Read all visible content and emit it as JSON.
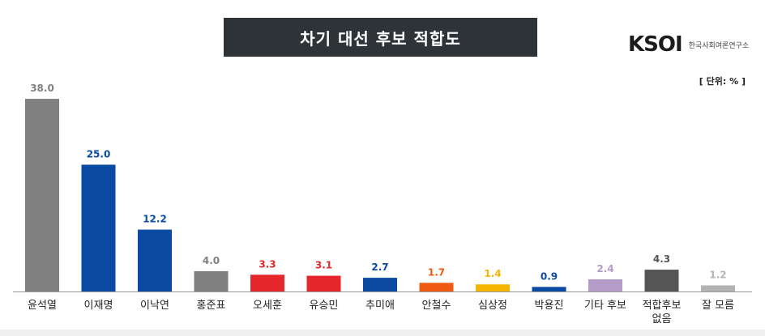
{
  "header": {
    "title": "차기 대선 후보 적합도"
  },
  "logo": {
    "mark": "KSOI",
    "subtitle": "한국사회여론연구소"
  },
  "unit_label": "[ 단위: % ]",
  "chart_data": {
    "type": "bar",
    "title": "차기 대선 후보 적합도",
    "unit": "%",
    "ylim": [
      0,
      40
    ],
    "grid": false,
    "legend": "none",
    "categories": [
      "윤석열",
      "이재명",
      "이낙연",
      "홍준표",
      "오세훈",
      "유승민",
      "추미애",
      "안철수",
      "심상정",
      "박용진",
      "기타 후보",
      "적합후보\n없음",
      "잘 모름"
    ],
    "values": [
      38.0,
      25.0,
      12.2,
      4.0,
      3.3,
      3.1,
      2.7,
      1.7,
      1.4,
      0.9,
      2.4,
      4.3,
      1.2
    ],
    "value_labels": [
      "38.0",
      "25.0",
      "12.2",
      "4.0",
      "3.3",
      "3.1",
      "2.7",
      "1.7",
      "1.4",
      "0.9",
      "2.4",
      "4.3",
      "1.2"
    ],
    "colors": [
      "#808080",
      "#0a4aa3",
      "#0a4aa3",
      "#808080",
      "#e5262b",
      "#e5262b",
      "#0a4aa3",
      "#f05a10",
      "#f7b400",
      "#0a4aa3",
      "#b39cc8",
      "#555555",
      "#b3b3b3"
    ],
    "label_colors": [
      "#808080",
      "#0a4aa3",
      "#0a4aa3",
      "#808080",
      "#e5262b",
      "#e5262b",
      "#0a4aa3",
      "#f05a10",
      "#f7b400",
      "#0a4aa3",
      "#b39cc8",
      "#555555",
      "#b3b3b3"
    ]
  }
}
